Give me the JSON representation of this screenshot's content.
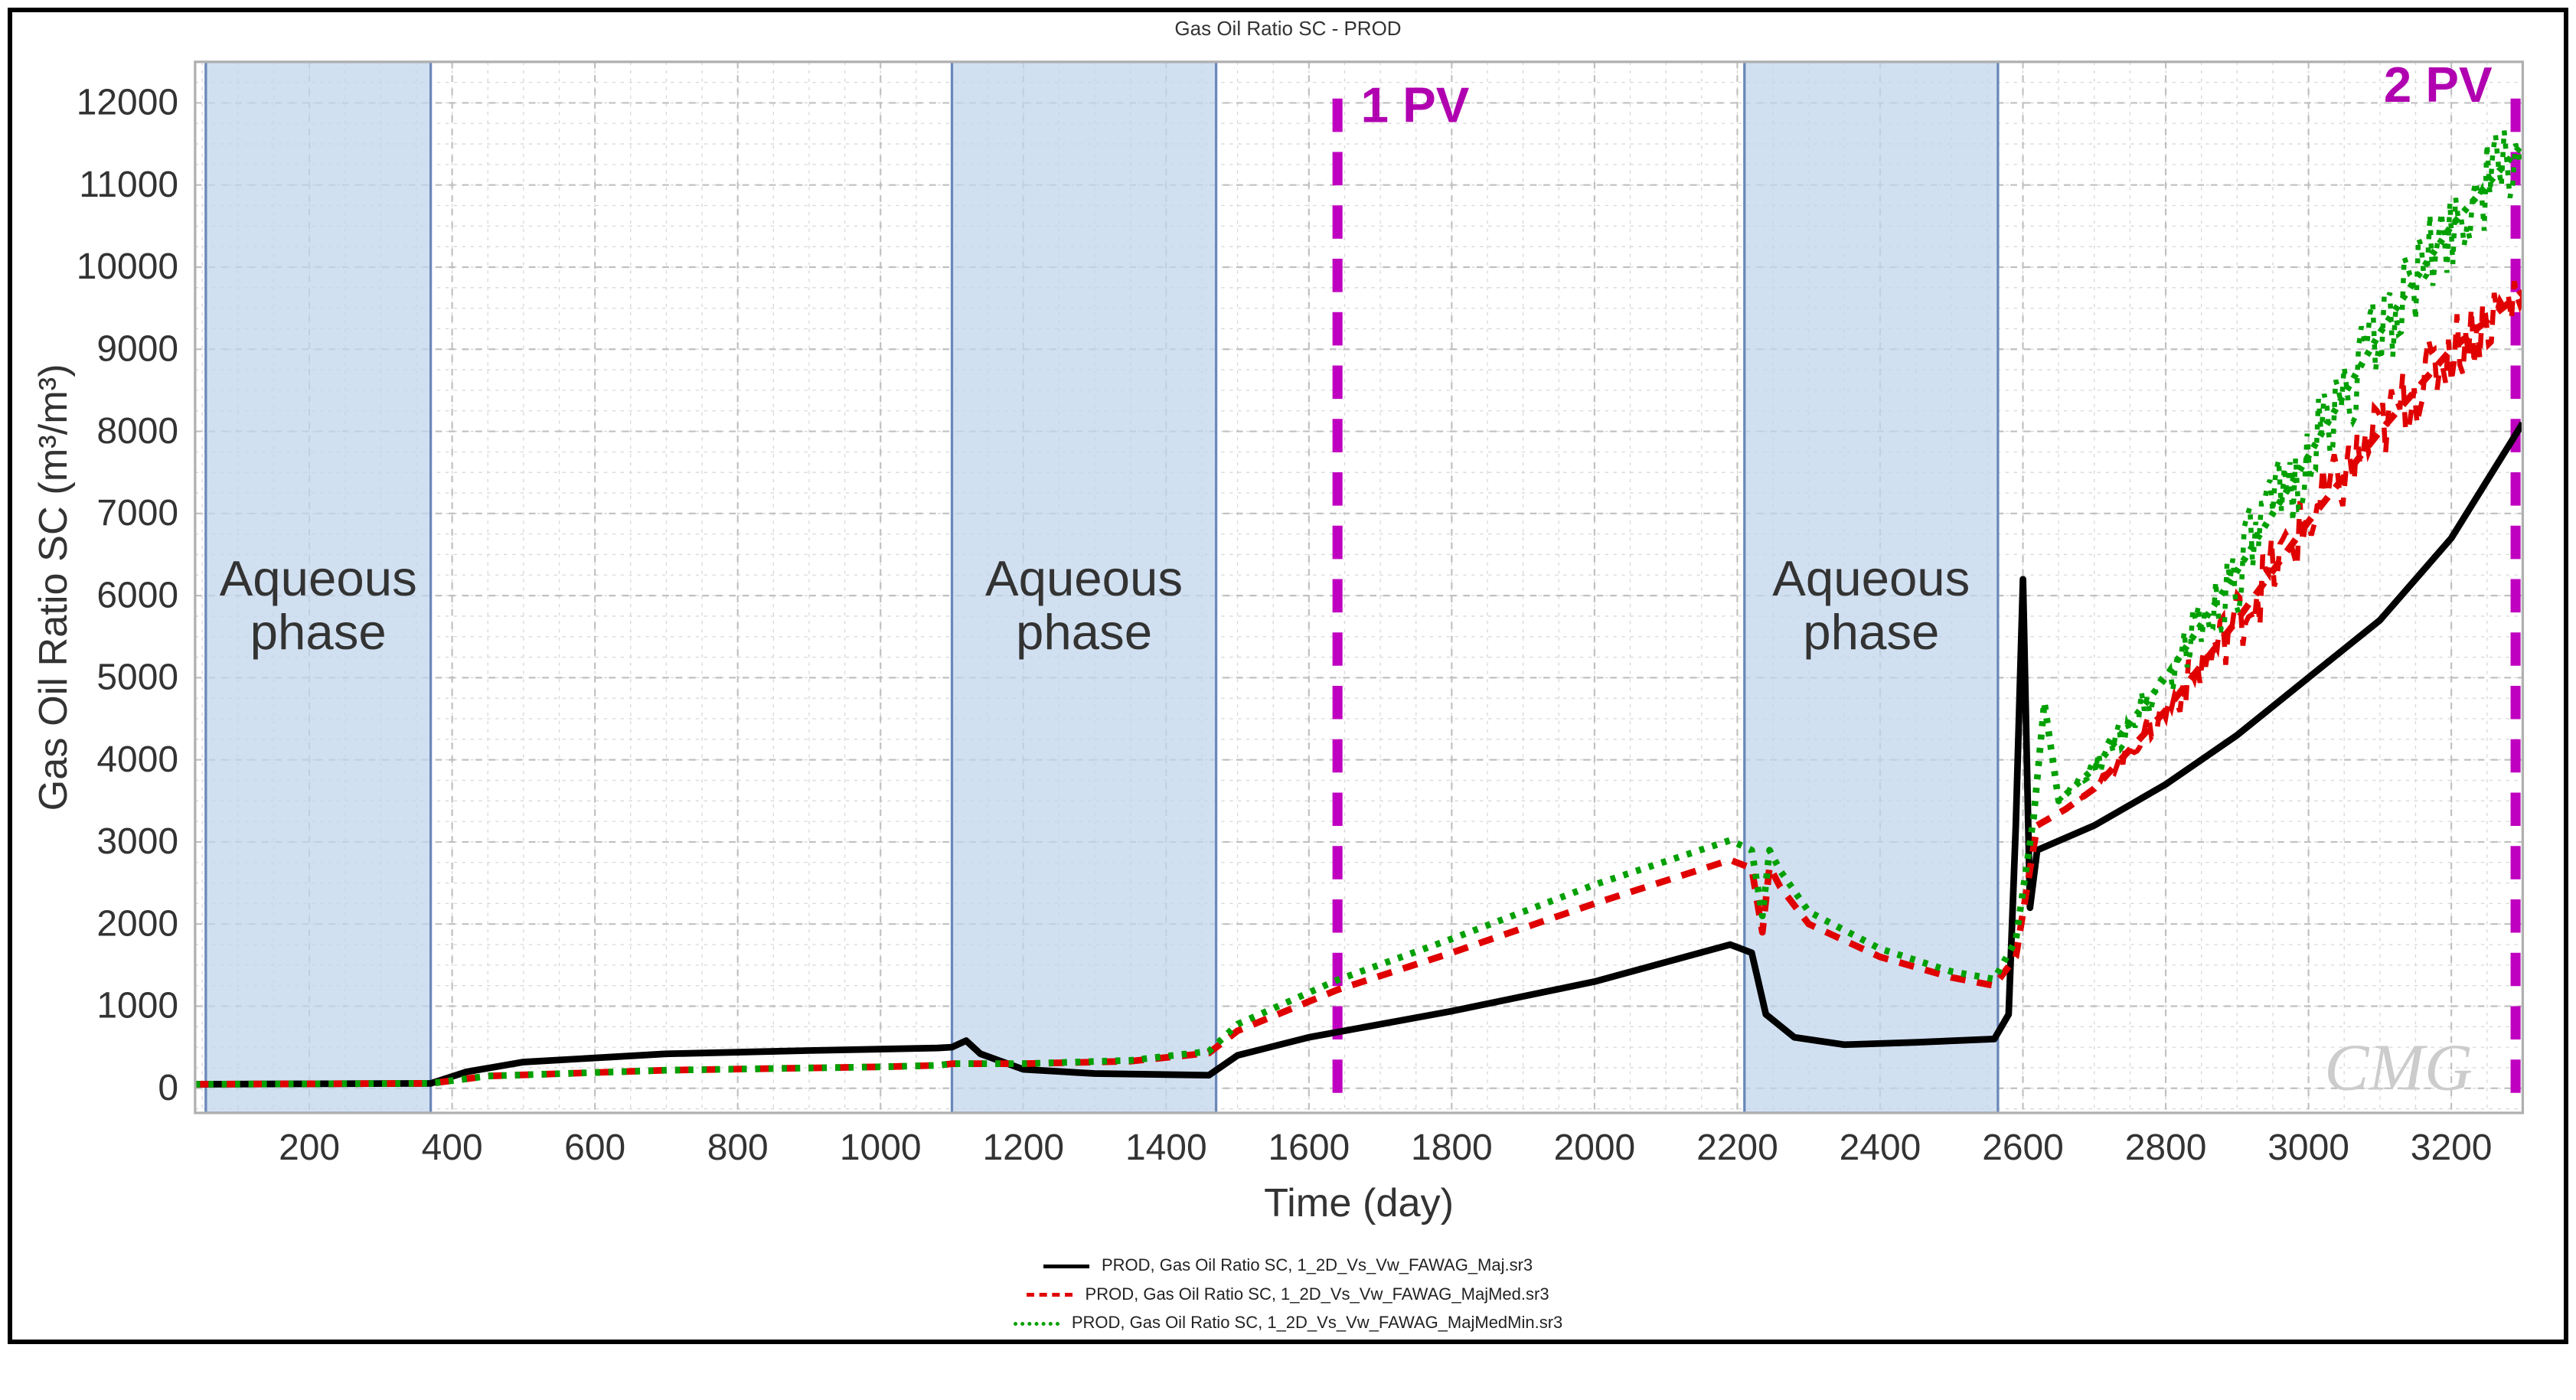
{
  "chart": {
    "type": "line",
    "title": "Gas Oil Ratio SC - PROD",
    "title_fontsize": 26,
    "title_color": "#333333",
    "xlabel": "Time (day)",
    "ylabel": "Gas Oil Ratio SC (m³/m³)",
    "label_fontsize": 24,
    "tick_fontsize": 22,
    "background_color": "#ffffff",
    "plot_border_color": "#b0b0b0",
    "grid_major_color": "#c0c0c0",
    "grid_minor_color": "#d8d8d8",
    "grid_minor_on": true,
    "xlim": [
      40,
      3300
    ],
    "ylim": [
      -300,
      12500
    ],
    "xticks": [
      200,
      400,
      600,
      800,
      1000,
      1200,
      1400,
      1600,
      1800,
      2000,
      2200,
      2400,
      2600,
      2800,
      3000,
      3200
    ],
    "yticks": [
      0,
      1000,
      2000,
      3000,
      4000,
      5000,
      6000,
      7000,
      8000,
      9000,
      10000,
      11000,
      12000
    ],
    "xminor_step": 50,
    "yminor_step": 250,
    "annotations": {
      "pv1": {
        "x": 1640,
        "label": "1 PV",
        "color": "#c000c0",
        "dash": "20,12",
        "width": 6
      },
      "pv2": {
        "x": 3290,
        "label": "2 PV",
        "color": "#c000c0",
        "dash": "20,12",
        "width": 6
      },
      "pv_label_fontsize": 30
    },
    "aqueous_phases": {
      "fill": "#c2d6ec",
      "opacity": 0.75,
      "border": "#6a88b8",
      "label": "Aqueous phase",
      "label_fontsize": 30,
      "y_top": 12500,
      "ranges": [
        {
          "x1": 55,
          "x2": 370
        },
        {
          "x1": 1100,
          "x2": 1470
        },
        {
          "x1": 2210,
          "x2": 2565
        }
      ]
    },
    "watermark": "CMG",
    "watermark_color": "#cccccc",
    "legend": {
      "position": "bottom-center",
      "items": [
        {
          "label": "PROD, Gas Oil Ratio SC, 1_2D_Vs_Vw_FAWAG_Maj.sr3",
          "color": "#000000",
          "style": "solid",
          "width": 5
        },
        {
          "label": "PROD, Gas Oil Ratio SC, 1_2D_Vs_Vw_FAWAG_MajMed.sr3",
          "color": "#e00000",
          "style": "dashed",
          "width": 5
        },
        {
          "label": "PROD, Gas Oil Ratio SC, 1_2D_Vs_Vw_FAWAG_MajMedMin.sr3",
          "color": "#00a000",
          "style": "dotted",
          "width": 5
        }
      ]
    },
    "series": [
      {
        "name": "black",
        "color": "#000000",
        "dash": "",
        "width": 4,
        "noise_amp": 0,
        "points": [
          [
            40,
            50
          ],
          [
            370,
            60
          ],
          [
            420,
            200
          ],
          [
            500,
            320
          ],
          [
            700,
            420
          ],
          [
            900,
            460
          ],
          [
            1080,
            490
          ],
          [
            1100,
            500
          ],
          [
            1120,
            580
          ],
          [
            1140,
            420
          ],
          [
            1200,
            230
          ],
          [
            1300,
            180
          ],
          [
            1460,
            160
          ],
          [
            1500,
            400
          ],
          [
            1600,
            620
          ],
          [
            1800,
            940
          ],
          [
            2000,
            1300
          ],
          [
            2190,
            1750
          ],
          [
            2220,
            1650
          ],
          [
            2240,
            900
          ],
          [
            2280,
            620
          ],
          [
            2350,
            530
          ],
          [
            2450,
            560
          ],
          [
            2560,
            600
          ],
          [
            2580,
            900
          ],
          [
            2590,
            3200
          ],
          [
            2600,
            6200
          ],
          [
            2610,
            2200
          ],
          [
            2620,
            2900
          ],
          [
            2700,
            3200
          ],
          [
            2800,
            3700
          ],
          [
            2900,
            4300
          ],
          [
            3000,
            5000
          ],
          [
            3100,
            5700
          ],
          [
            3200,
            6700
          ],
          [
            3300,
            8100
          ]
        ]
      },
      {
        "name": "red",
        "color": "#e00000",
        "dash": "9,7",
        "width": 4,
        "noise_amp": 450,
        "noise_from_x": 2680,
        "points": [
          [
            40,
            50
          ],
          [
            370,
            60
          ],
          [
            450,
            150
          ],
          [
            700,
            220
          ],
          [
            1000,
            260
          ],
          [
            1080,
            280
          ],
          [
            1100,
            300
          ],
          [
            1200,
            300
          ],
          [
            1350,
            330
          ],
          [
            1460,
            430
          ],
          [
            1500,
            700
          ],
          [
            1640,
            1200
          ],
          [
            1800,
            1650
          ],
          [
            2000,
            2250
          ],
          [
            2190,
            2780
          ],
          [
            2220,
            2680
          ],
          [
            2235,
            1900
          ],
          [
            2245,
            2700
          ],
          [
            2260,
            2450
          ],
          [
            2300,
            2000
          ],
          [
            2400,
            1600
          ],
          [
            2500,
            1350
          ],
          [
            2560,
            1250
          ],
          [
            2590,
            1600
          ],
          [
            2620,
            3200
          ],
          [
            2660,
            3400
          ],
          [
            2700,
            3650
          ],
          [
            2800,
            4600
          ],
          [
            2900,
            5700
          ],
          [
            3000,
            6900
          ],
          [
            3100,
            8000
          ],
          [
            3200,
            9000
          ],
          [
            3300,
            9700
          ]
        ]
      },
      {
        "name": "green",
        "color": "#00a000",
        "dash": "3,5",
        "width": 4,
        "noise_amp": 550,
        "noise_from_x": 2650,
        "points": [
          [
            40,
            50
          ],
          [
            370,
            60
          ],
          [
            450,
            150
          ],
          [
            700,
            220
          ],
          [
            1000,
            260
          ],
          [
            1080,
            280
          ],
          [
            1100,
            300
          ],
          [
            1200,
            300
          ],
          [
            1350,
            340
          ],
          [
            1460,
            450
          ],
          [
            1500,
            780
          ],
          [
            1640,
            1320
          ],
          [
            1800,
            1820
          ],
          [
            2000,
            2480
          ],
          [
            2190,
            3020
          ],
          [
            2220,
            2900
          ],
          [
            2235,
            2100
          ],
          [
            2245,
            2900
          ],
          [
            2260,
            2650
          ],
          [
            2300,
            2150
          ],
          [
            2400,
            1700
          ],
          [
            2500,
            1420
          ],
          [
            2560,
            1330
          ],
          [
            2590,
            1800
          ],
          [
            2615,
            3300
          ],
          [
            2630,
            4700
          ],
          [
            2650,
            3500
          ],
          [
            2700,
            3900
          ],
          [
            2800,
            5000
          ],
          [
            2900,
            6300
          ],
          [
            3000,
            7700
          ],
          [
            3100,
            9200
          ],
          [
            3200,
            10500
          ],
          [
            3300,
            11500
          ]
        ]
      }
    ]
  }
}
